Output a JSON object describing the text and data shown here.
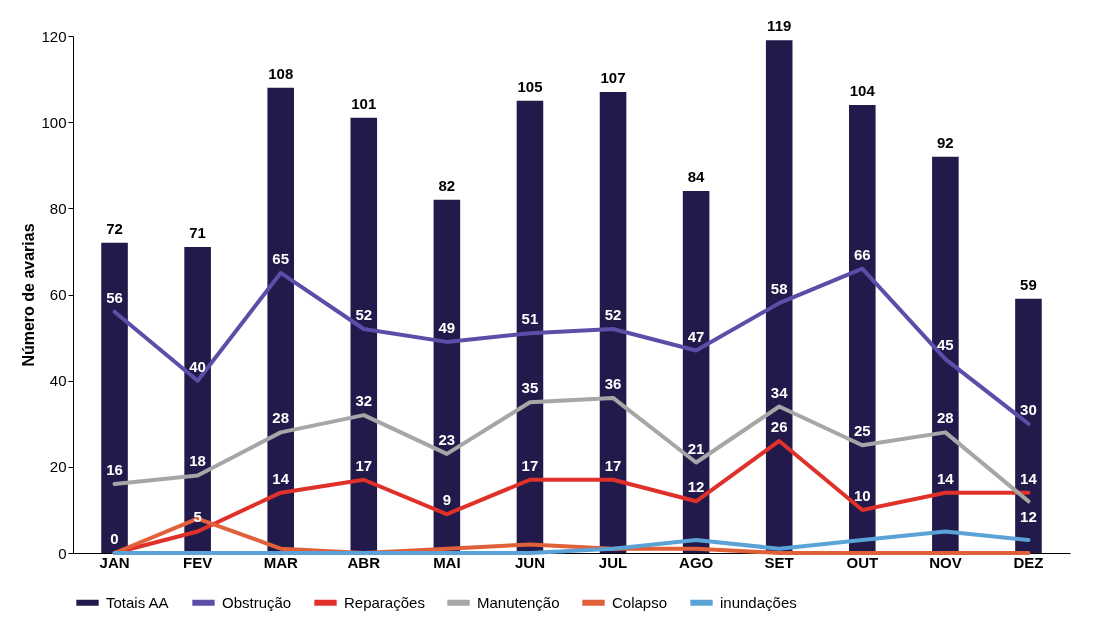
{
  "chart_data": {
    "type": "bar",
    "ylabel": "Número de avarias",
    "categories": [
      "JAN",
      "FEV",
      "MAR",
      "ABR",
      "MAI",
      "JUN",
      "JUL",
      "AGO",
      "SET",
      "OUT",
      "NOV",
      "DEZ"
    ],
    "ylim": [
      0,
      120
    ],
    "yticks": [
      0,
      20,
      40,
      60,
      80,
      100,
      120
    ],
    "legend": "bottom",
    "marker": "none",
    "line_style": "solid",
    "series": [
      {
        "name": "Totais AA",
        "color": "#221a4a",
        "values": [
          72,
          71,
          108,
          101,
          82,
          105,
          107,
          84,
          119,
          104,
          92,
          59
        ],
        "value_labels": [
          "72",
          "71",
          "108",
          "101",
          "82",
          "105",
          "107",
          "84",
          "119",
          "104",
          "92",
          "59"
        ]
      },
      {
        "name": "Obstrução",
        "type": "line",
        "color": "#5b4ea8",
        "values": [
          56,
          40,
          65,
          52,
          49,
          51,
          52,
          47,
          58,
          66,
          45,
          30
        ],
        "value_labels": [
          "56",
          "40",
          "65",
          "52",
          "49",
          "51",
          "52",
          "47",
          "58",
          "66",
          "45",
          "30"
        ]
      },
      {
        "name": "Reparações",
        "type": "line",
        "color": "#e0302a",
        "values": [
          0,
          5,
          14,
          17,
          9,
          17,
          17,
          12,
          26,
          10,
          14,
          14
        ],
        "value_labels": [
          "0",
          "5",
          "14",
          "17",
          "9",
          "17",
          "17",
          "12",
          "26",
          "10",
          "14",
          "14"
        ]
      },
      {
        "name": "Manutenção",
        "type": "line",
        "color": "#a6a6a6",
        "values": [
          16,
          18,
          28,
          32,
          23,
          35,
          36,
          21,
          34,
          25,
          28,
          12
        ],
        "value_labels": [
          "16",
          "18",
          "28",
          "32",
          "23",
          "35",
          "36",
          "21",
          "34",
          "25",
          "28",
          "12"
        ]
      },
      {
        "name": "Colapso",
        "type": "line",
        "color": "#e0603a",
        "values": [
          0,
          8,
          1,
          0,
          1,
          2,
          1,
          1,
          0,
          0,
          0,
          0
        ]
      },
      {
        "name": "inundações",
        "type": "line",
        "color": "#5ba3d6",
        "values": [
          0,
          0,
          0,
          0,
          0,
          0,
          1,
          3,
          1,
          3,
          5,
          3
        ]
      }
    ]
  }
}
